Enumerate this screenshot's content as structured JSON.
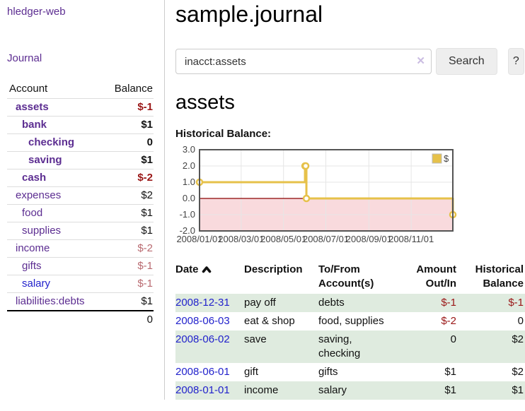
{
  "app": {
    "title": "hledger-web"
  },
  "sidebar": {
    "journal_link": "Journal",
    "accounts_table": {
      "headers": {
        "account": "Account",
        "balance": "Balance"
      },
      "rows": [
        {
          "name": "assets",
          "indent": 1,
          "bold": true,
          "balance": "$-1",
          "balance_style": "negative",
          "link_color": "purple"
        },
        {
          "name": "bank",
          "indent": 2,
          "bold": true,
          "balance": "$1",
          "balance_style": "normal",
          "link_color": "purple"
        },
        {
          "name": "checking",
          "indent": 3,
          "bold": true,
          "balance": "0",
          "balance_style": "normal",
          "link_color": "purple"
        },
        {
          "name": "saving",
          "indent": 3,
          "bold": true,
          "balance": "$1",
          "balance_style": "normal",
          "link_color": "purple"
        },
        {
          "name": "cash",
          "indent": 2,
          "bold": true,
          "balance": "$-2",
          "balance_style": "negative",
          "link_color": "purple"
        },
        {
          "name": "expenses",
          "indent": 1,
          "bold": false,
          "balance": "$2",
          "balance_style": "normal",
          "link_color": "purple"
        },
        {
          "name": "food",
          "indent": 2,
          "bold": false,
          "balance": "$1",
          "balance_style": "normal",
          "link_color": "purple"
        },
        {
          "name": "supplies",
          "indent": 2,
          "bold": false,
          "balance": "$1",
          "balance_style": "normal",
          "link_color": "purple"
        },
        {
          "name": "income",
          "indent": 1,
          "bold": false,
          "balance": "$-2",
          "balance_style": "muted-negative",
          "link_color": "purple"
        },
        {
          "name": "gifts",
          "indent": 2,
          "bold": false,
          "balance": "$-1",
          "balance_style": "muted-negative",
          "link_color": "purple"
        },
        {
          "name": "salary",
          "indent": 2,
          "bold": false,
          "balance": "$-1",
          "balance_style": "muted-negative",
          "link_color": "blue"
        },
        {
          "name": "liabilities:debts",
          "indent": 1,
          "bold": false,
          "balance": "$1",
          "balance_style": "normal",
          "link_color": "purple"
        }
      ],
      "total": "0"
    }
  },
  "main": {
    "title": "sample.journal",
    "search": {
      "value": "inacct:assets",
      "clear_icon": "✕",
      "button_label": "Search",
      "help_label": "?"
    },
    "account_heading": "assets",
    "chart_label": "Historical Balance:"
  },
  "chart_data": {
    "type": "line",
    "title": "Historical Balance",
    "step": true,
    "series": [
      {
        "name": "$",
        "color": "#e6c14a",
        "points": [
          [
            "2008-01-01",
            1
          ],
          [
            "2008-06-01",
            2
          ],
          [
            "2008-06-02",
            2
          ],
          [
            "2008-06-03",
            0
          ],
          [
            "2008-12-31",
            -1
          ]
        ]
      }
    ],
    "x_range": [
      "2008-01-01",
      "2008-12-31"
    ],
    "x_ticks": [
      {
        "label": "2008/01/01",
        "date": "2008-01-01"
      },
      {
        "label": "2008/03/01",
        "date": "2008-03-01"
      },
      {
        "label": "2008/05/01",
        "date": "2008-05-01"
      },
      {
        "label": "2008/07/01",
        "date": "2008-07-01"
      },
      {
        "label": "2008/09/01",
        "date": "2008-09-01"
      },
      {
        "label": "2008/11/01",
        "date": "2008-11-01"
      }
    ],
    "y_ticks": [
      "3.0",
      "2.0",
      "1.0",
      "0.0",
      "-1.0",
      "-2.0"
    ],
    "ylim": [
      -2,
      3
    ],
    "grid": true,
    "legend_position": "top-right",
    "legend_label": "$",
    "colors": {
      "line": "#e6c14a",
      "marker_fill": "#ffffff",
      "negative_region_fill": "#f9dadd",
      "zero_line": "#8b0000",
      "gridline": "#e6e6e6",
      "plot_border": "#545454",
      "tick_label": "#444444"
    }
  },
  "register": {
    "headers": {
      "date": "Date",
      "description": "Description",
      "accounts": "To/From Account(s)",
      "amount": "Amount Out/In",
      "balance": "Historical Balance"
    },
    "rows": [
      {
        "date": "2008-12-31",
        "description": "pay off",
        "accounts": "debts",
        "amount": "$-1",
        "amount_negative": true,
        "balance": "$-1",
        "balance_negative": true,
        "stripe": true
      },
      {
        "date": "2008-06-03",
        "description": "eat & shop",
        "accounts": "food, supplies",
        "amount": "$-2",
        "amount_negative": true,
        "balance": "0",
        "balance_negative": false,
        "stripe": false
      },
      {
        "date": "2008-06-02",
        "description": "save",
        "accounts": "saving, checking",
        "amount": "0",
        "amount_negative": false,
        "balance": "$2",
        "balance_negative": false,
        "stripe": true
      },
      {
        "date": "2008-06-01",
        "description": "gift",
        "accounts": "gifts",
        "amount": "$1",
        "amount_negative": false,
        "balance": "$2",
        "balance_negative": false,
        "stripe": false
      },
      {
        "date": "2008-01-01",
        "description": "income",
        "accounts": "salary",
        "amount": "$1",
        "amount_negative": false,
        "balance": "$1",
        "balance_negative": false,
        "stripe": true
      }
    ]
  }
}
